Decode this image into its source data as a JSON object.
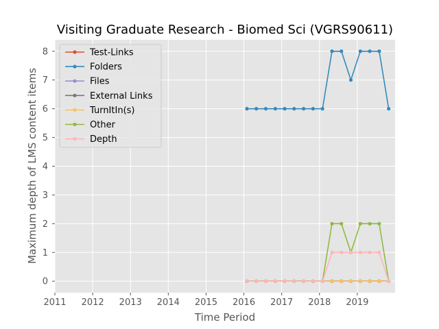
{
  "chart_data": {
    "type": "line",
    "title": "Visiting Graduate Research - Biomed Sci (VGRS90611)",
    "xlabel": "Time Period",
    "ylabel": "Maximum depth of LMS content items",
    "xlim": [
      2011.0,
      2020.0
    ],
    "ylim": [
      -0.4,
      8.4
    ],
    "x_ticks": [
      2011,
      2012,
      2013,
      2014,
      2015,
      2016,
      2017,
      2018,
      2019
    ],
    "y_ticks": [
      0,
      1,
      2,
      3,
      4,
      5,
      6,
      7,
      8
    ],
    "grid": true,
    "legend_position": "top-left",
    "x": [
      2016.08,
      2016.33,
      2016.58,
      2016.83,
      2017.08,
      2017.33,
      2017.58,
      2017.83,
      2018.08,
      2018.33,
      2018.58,
      2018.83,
      2019.08,
      2019.33,
      2019.58,
      2019.83
    ],
    "series": [
      {
        "name": "Test-Links",
        "color": "#e24a33",
        "values": [
          0,
          0,
          0,
          0,
          0,
          0,
          0,
          0,
          0,
          0,
          0,
          0,
          0,
          0,
          0,
          0
        ]
      },
      {
        "name": "Folders",
        "color": "#348abd",
        "values": [
          6,
          6,
          6,
          6,
          6,
          6,
          6,
          6,
          6,
          8,
          8,
          7,
          8,
          8,
          8,
          6
        ]
      },
      {
        "name": "Files",
        "color": "#988ed5",
        "values": [
          0,
          0,
          0,
          0,
          0,
          0,
          0,
          0,
          0,
          0,
          0,
          0,
          0,
          0,
          0,
          0
        ]
      },
      {
        "name": "External Links",
        "color": "#777777",
        "values": [
          0,
          0,
          0,
          0,
          0,
          0,
          0,
          0,
          0,
          0,
          0,
          0,
          0,
          0,
          0,
          0
        ]
      },
      {
        "name": "TurnItIn(s)",
        "color": "#fbc15e",
        "values": [
          0,
          0,
          0,
          0,
          0,
          0,
          0,
          0,
          0,
          0,
          0,
          0,
          0,
          0,
          0,
          0
        ]
      },
      {
        "name": "Other",
        "color": "#8eba42",
        "values": [
          0,
          0,
          0,
          0,
          0,
          0,
          0,
          0,
          0,
          2,
          2,
          1,
          2,
          2,
          2,
          0
        ]
      },
      {
        "name": "Depth",
        "color": "#ffb5b8",
        "values": [
          0,
          0,
          0,
          0,
          0,
          0,
          0,
          0,
          0,
          1,
          1,
          1,
          1,
          1,
          1,
          0
        ]
      }
    ]
  }
}
